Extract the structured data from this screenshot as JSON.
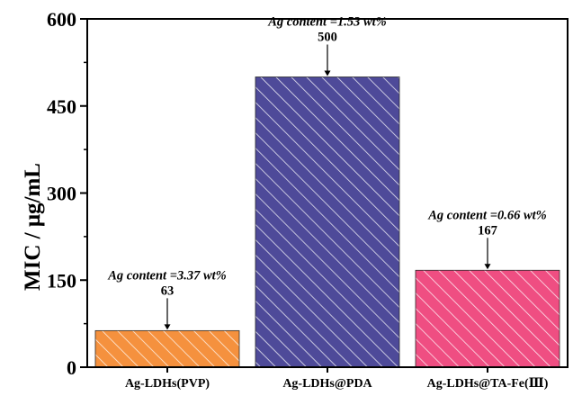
{
  "chart_data": {
    "type": "bar",
    "categories": [
      "Ag-LDHs(PVP)",
      "Ag-LDHs@PDA",
      "Ag-LDHs@TA-Fe(III)"
    ],
    "category_display": [
      "Ag-LDHs(PVP)",
      "Ag-LDHs@PDA",
      "Ag-LDHs@TA-Fe(Ⅲ)"
    ],
    "values": [
      63,
      500,
      167
    ],
    "data_labels": [
      "63",
      "500",
      "167"
    ],
    "annotations": [
      "Ag content =3.37 wt%",
      "Ag content =1.53 wt%",
      "Ag content =0.66 wt%"
    ],
    "colors": [
      "#F5913E",
      "#4E4A99",
      "#EF4E82"
    ],
    "hatch": "diagonal white lines",
    "ylabel": "MIC / μg/mL",
    "xlabel": "",
    "title": "",
    "ylim": [
      0,
      600
    ],
    "yticks": [
      0,
      150,
      300,
      450,
      600
    ],
    "grid": false,
    "legend": "none"
  }
}
